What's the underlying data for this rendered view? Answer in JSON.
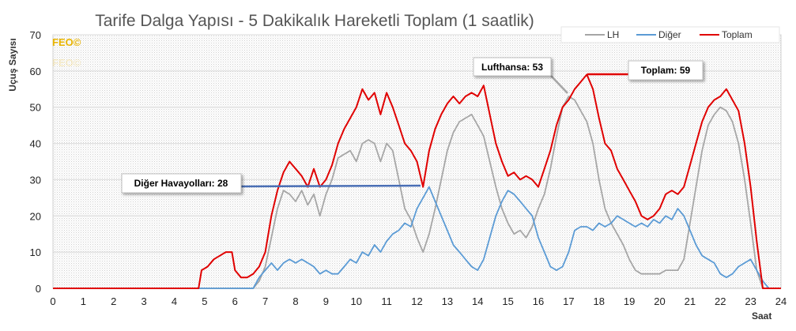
{
  "chart_data": {
    "type": "line",
    "title": "Tarife Dalga Yapısı - 5 Dakikalık Hareketli Toplam (1 saatlik)",
    "xlabel": "Saat",
    "ylabel": "Uçuş Sayısı",
    "xlim": [
      0,
      24
    ],
    "ylim": [
      0,
      70
    ],
    "x_ticks": [
      "0",
      "1",
      "2",
      "3",
      "4",
      "5",
      "6",
      "7",
      "8",
      "9",
      "10",
      "11",
      "12",
      "13",
      "14",
      "15",
      "16",
      "17",
      "18",
      "19",
      "20",
      "21",
      "22",
      "23",
      "24"
    ],
    "y_ticks": [
      "0",
      "10",
      "20",
      "30",
      "40",
      "50",
      "60",
      "70"
    ],
    "grid": "horizontal",
    "legend_position": "top-right",
    "watermark": [
      "FEO©",
      "FEO©"
    ],
    "series": [
      {
        "name": "LH",
        "color": "#a6a6a6",
        "points": [
          [
            0,
            0
          ],
          [
            6.6,
            0
          ],
          [
            6.8,
            2
          ],
          [
            7.0,
            6
          ],
          [
            7.2,
            14
          ],
          [
            7.4,
            22
          ],
          [
            7.6,
            27
          ],
          [
            7.8,
            26
          ],
          [
            8.0,
            24
          ],
          [
            8.2,
            27
          ],
          [
            8.4,
            23
          ],
          [
            8.6,
            26
          ],
          [
            8.8,
            20
          ],
          [
            9.0,
            26
          ],
          [
            9.2,
            30
          ],
          [
            9.4,
            36
          ],
          [
            9.6,
            37
          ],
          [
            9.8,
            38
          ],
          [
            10.0,
            35
          ],
          [
            10.2,
            40
          ],
          [
            10.4,
            41
          ],
          [
            10.6,
            40
          ],
          [
            10.8,
            35
          ],
          [
            11.0,
            40
          ],
          [
            11.2,
            38
          ],
          [
            11.4,
            30
          ],
          [
            11.6,
            22
          ],
          [
            11.8,
            19
          ],
          [
            12.0,
            14
          ],
          [
            12.2,
            10
          ],
          [
            12.4,
            15
          ],
          [
            12.6,
            22
          ],
          [
            12.8,
            30
          ],
          [
            13.0,
            38
          ],
          [
            13.2,
            43
          ],
          [
            13.4,
            46
          ],
          [
            13.6,
            47
          ],
          [
            13.8,
            48
          ],
          [
            14.0,
            45
          ],
          [
            14.2,
            42
          ],
          [
            14.4,
            35
          ],
          [
            14.6,
            28
          ],
          [
            14.8,
            22
          ],
          [
            15.0,
            18
          ],
          [
            15.2,
            15
          ],
          [
            15.4,
            16
          ],
          [
            15.6,
            14
          ],
          [
            15.8,
            17
          ],
          [
            16.0,
            22
          ],
          [
            16.2,
            26
          ],
          [
            16.4,
            33
          ],
          [
            16.6,
            42
          ],
          [
            16.8,
            50
          ],
          [
            17.0,
            53
          ],
          [
            17.2,
            52
          ],
          [
            17.4,
            49
          ],
          [
            17.6,
            46
          ],
          [
            17.8,
            40
          ],
          [
            18.0,
            30
          ],
          [
            18.2,
            22
          ],
          [
            18.4,
            18
          ],
          [
            18.6,
            15
          ],
          [
            18.8,
            12
          ],
          [
            19.0,
            8
          ],
          [
            19.2,
            5
          ],
          [
            19.4,
            4
          ],
          [
            19.6,
            4
          ],
          [
            19.8,
            4
          ],
          [
            20.0,
            4
          ],
          [
            20.2,
            5
          ],
          [
            20.4,
            5
          ],
          [
            20.6,
            5
          ],
          [
            20.8,
            8
          ],
          [
            21.0,
            18
          ],
          [
            21.2,
            28
          ],
          [
            21.4,
            38
          ],
          [
            21.6,
            45
          ],
          [
            21.8,
            48
          ],
          [
            22.0,
            50
          ],
          [
            22.2,
            49
          ],
          [
            22.4,
            46
          ],
          [
            22.6,
            40
          ],
          [
            22.8,
            30
          ],
          [
            23.0,
            18
          ],
          [
            23.2,
            5
          ],
          [
            23.4,
            0
          ],
          [
            24,
            0
          ]
        ]
      },
      {
        "name": "Diğer",
        "color": "#5b9bd5",
        "points": [
          [
            0,
            0
          ],
          [
            6.6,
            0
          ],
          [
            6.8,
            3
          ],
          [
            7.0,
            5
          ],
          [
            7.2,
            7
          ],
          [
            7.4,
            5
          ],
          [
            7.6,
            7
          ],
          [
            7.8,
            8
          ],
          [
            8.0,
            7
          ],
          [
            8.2,
            8
          ],
          [
            8.4,
            7
          ],
          [
            8.6,
            6
          ],
          [
            8.8,
            4
          ],
          [
            9.0,
            5
          ],
          [
            9.2,
            4
          ],
          [
            9.4,
            4
          ],
          [
            9.6,
            6
          ],
          [
            9.8,
            8
          ],
          [
            10.0,
            7
          ],
          [
            10.2,
            10
          ],
          [
            10.4,
            9
          ],
          [
            10.6,
            12
          ],
          [
            10.8,
            10
          ],
          [
            11.0,
            13
          ],
          [
            11.2,
            15
          ],
          [
            11.4,
            16
          ],
          [
            11.6,
            18
          ],
          [
            11.8,
            17
          ],
          [
            12.0,
            22
          ],
          [
            12.2,
            25
          ],
          [
            12.4,
            28
          ],
          [
            12.6,
            24
          ],
          [
            12.8,
            20
          ],
          [
            13.0,
            16
          ],
          [
            13.2,
            12
          ],
          [
            13.4,
            10
          ],
          [
            13.6,
            8
          ],
          [
            13.8,
            6
          ],
          [
            14.0,
            5
          ],
          [
            14.2,
            8
          ],
          [
            14.4,
            14
          ],
          [
            14.6,
            20
          ],
          [
            14.8,
            24
          ],
          [
            15.0,
            27
          ],
          [
            15.2,
            26
          ],
          [
            15.4,
            24
          ],
          [
            15.6,
            22
          ],
          [
            15.8,
            20
          ],
          [
            16.0,
            14
          ],
          [
            16.2,
            10
          ],
          [
            16.4,
            6
          ],
          [
            16.6,
            5
          ],
          [
            16.8,
            6
          ],
          [
            17.0,
            10
          ],
          [
            17.2,
            16
          ],
          [
            17.4,
            17
          ],
          [
            17.6,
            17
          ],
          [
            17.8,
            16
          ],
          [
            18.0,
            18
          ],
          [
            18.2,
            17
          ],
          [
            18.4,
            18
          ],
          [
            18.6,
            20
          ],
          [
            18.8,
            19
          ],
          [
            19.0,
            18
          ],
          [
            19.2,
            17
          ],
          [
            19.4,
            18
          ],
          [
            19.6,
            17
          ],
          [
            19.8,
            19
          ],
          [
            20.0,
            18
          ],
          [
            20.2,
            20
          ],
          [
            20.4,
            19
          ],
          [
            20.6,
            22
          ],
          [
            20.8,
            20
          ],
          [
            21.0,
            16
          ],
          [
            21.2,
            12
          ],
          [
            21.4,
            9
          ],
          [
            21.6,
            8
          ],
          [
            21.8,
            7
          ],
          [
            22.0,
            4
          ],
          [
            22.2,
            3
          ],
          [
            22.4,
            4
          ],
          [
            22.6,
            6
          ],
          [
            22.8,
            7
          ],
          [
            23.0,
            8
          ],
          [
            23.2,
            5
          ],
          [
            23.4,
            2
          ],
          [
            23.6,
            0
          ],
          [
            24,
            0
          ]
        ]
      },
      {
        "name": "Toplam",
        "color": "#e00000",
        "points": [
          [
            0,
            0
          ],
          [
            4.8,
            0
          ],
          [
            4.9,
            5
          ],
          [
            5.1,
            6
          ],
          [
            5.3,
            8
          ],
          [
            5.5,
            9
          ],
          [
            5.7,
            10
          ],
          [
            5.9,
            10
          ],
          [
            6.0,
            5
          ],
          [
            6.2,
            3
          ],
          [
            6.4,
            3
          ],
          [
            6.6,
            4
          ],
          [
            6.8,
            6
          ],
          [
            7.0,
            10
          ],
          [
            7.2,
            20
          ],
          [
            7.4,
            27
          ],
          [
            7.6,
            32
          ],
          [
            7.8,
            35
          ],
          [
            8.0,
            33
          ],
          [
            8.2,
            31
          ],
          [
            8.4,
            28
          ],
          [
            8.6,
            33
          ],
          [
            8.8,
            28
          ],
          [
            9.0,
            30
          ],
          [
            9.2,
            34
          ],
          [
            9.4,
            40
          ],
          [
            9.6,
            44
          ],
          [
            9.8,
            47
          ],
          [
            10.0,
            50
          ],
          [
            10.2,
            55
          ],
          [
            10.4,
            52
          ],
          [
            10.6,
            54
          ],
          [
            10.8,
            48
          ],
          [
            11.0,
            54
          ],
          [
            11.2,
            50
          ],
          [
            11.4,
            45
          ],
          [
            11.6,
            40
          ],
          [
            11.8,
            38
          ],
          [
            12.0,
            35
          ],
          [
            12.2,
            28
          ],
          [
            12.4,
            38
          ],
          [
            12.6,
            44
          ],
          [
            12.8,
            48
          ],
          [
            13.0,
            51
          ],
          [
            13.2,
            53
          ],
          [
            13.4,
            51
          ],
          [
            13.6,
            53
          ],
          [
            13.8,
            54
          ],
          [
            14.0,
            53
          ],
          [
            14.2,
            56
          ],
          [
            14.4,
            48
          ],
          [
            14.6,
            40
          ],
          [
            14.8,
            35
          ],
          [
            15.0,
            31
          ],
          [
            15.2,
            32
          ],
          [
            15.4,
            30
          ],
          [
            15.6,
            31
          ],
          [
            15.8,
            30
          ],
          [
            16.0,
            28
          ],
          [
            16.2,
            33
          ],
          [
            16.4,
            38
          ],
          [
            16.6,
            45
          ],
          [
            16.8,
            50
          ],
          [
            17.0,
            52
          ],
          [
            17.2,
            55
          ],
          [
            17.4,
            57
          ],
          [
            17.6,
            59
          ],
          [
            17.8,
            55
          ],
          [
            18.0,
            47
          ],
          [
            18.2,
            40
          ],
          [
            18.4,
            38
          ],
          [
            18.6,
            33
          ],
          [
            18.8,
            30
          ],
          [
            19.0,
            27
          ],
          [
            19.2,
            24
          ],
          [
            19.4,
            20
          ],
          [
            19.6,
            19
          ],
          [
            19.8,
            20
          ],
          [
            20.0,
            22
          ],
          [
            20.2,
            26
          ],
          [
            20.4,
            27
          ],
          [
            20.6,
            26
          ],
          [
            20.8,
            28
          ],
          [
            21.0,
            34
          ],
          [
            21.2,
            40
          ],
          [
            21.4,
            46
          ],
          [
            21.6,
            50
          ],
          [
            21.8,
            52
          ],
          [
            22.0,
            53
          ],
          [
            22.2,
            55
          ],
          [
            22.4,
            52
          ],
          [
            22.6,
            49
          ],
          [
            22.8,
            40
          ],
          [
            23.0,
            28
          ],
          [
            23.2,
            13
          ],
          [
            23.4,
            0
          ],
          [
            24,
            0
          ]
        ]
      }
    ],
    "annotations": [
      {
        "text": "Diğer Havayolları: 28",
        "series": "Diğer",
        "x": 12.4,
        "y": 28
      },
      {
        "text": "Lufthansa: 53",
        "series": "LH",
        "x": 17.0,
        "y": 53
      },
      {
        "text": "Toplam: 59",
        "series": "Toplam",
        "x": 17.6,
        "y": 59
      }
    ]
  }
}
